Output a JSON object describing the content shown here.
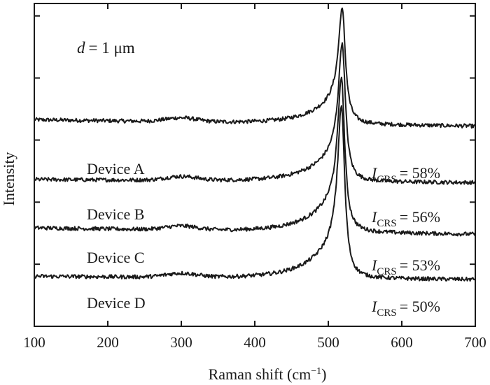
{
  "chart_data": {
    "type": "line",
    "xlabel": "Raman shift (cm−1)",
    "xlabel_main": "Raman shift (cm",
    "xlabel_sup": "−1",
    "xlabel_close": ")",
    "ylabel": "Intensity",
    "xlim": [
      100,
      700
    ],
    "ylim": [
      0,
      1
    ],
    "xticks": [
      100,
      200,
      300,
      400,
      500,
      600,
      700
    ],
    "yticks_count": 5,
    "yticklabels_shown": false,
    "grid": false,
    "annotation": {
      "d_symbol": "d",
      "d_rest": "= 1 μm",
      "d_text": "d = 1 μm"
    },
    "icrs_prefix": "I",
    "icrs_subscript": "CRS",
    "series": [
      {
        "name": "Device A",
        "icrs_value": "= 58%",
        "icrs_label": "ICRS = 58%",
        "baseline": 0.64,
        "baseline_end": 0.62,
        "peak_x": 519,
        "peak_y": 0.995
      },
      {
        "name": "Device B",
        "icrs_value": "= 56%",
        "icrs_label": "ICRS = 56%",
        "baseline": 0.455,
        "baseline_end": 0.445,
        "peak_x": 519,
        "peak_y": 0.88
      },
      {
        "name": "Device C",
        "icrs_value": "= 53%",
        "icrs_label": "ICRS = 53%",
        "baseline": 0.305,
        "baseline_end": 0.285,
        "peak_x": 518,
        "peak_y": 0.78
      },
      {
        "name": "Device D",
        "icrs_value": "= 50%",
        "icrs_label": "ICRS = 50%",
        "baseline": 0.155,
        "baseline_end": 0.145,
        "peak_x": 518,
        "peak_y": 0.685
      }
    ]
  }
}
